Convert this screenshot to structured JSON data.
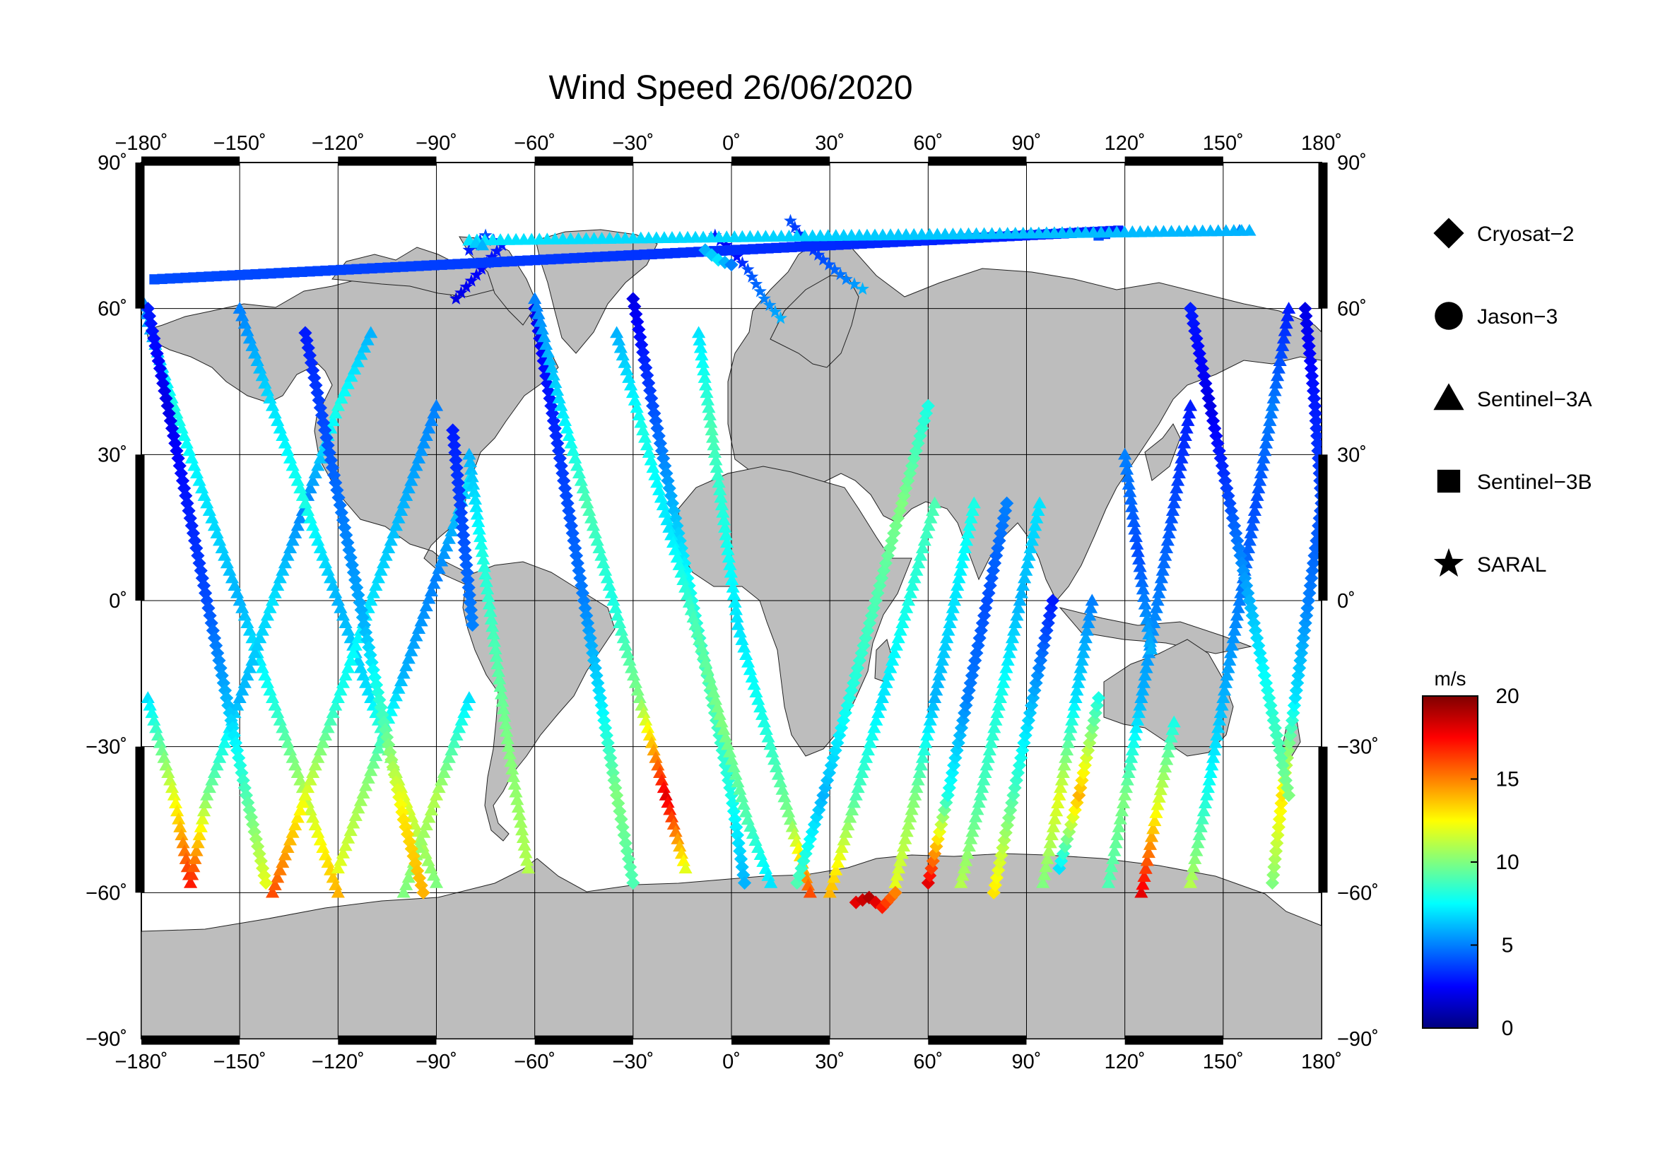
{
  "chart_data": {
    "type": "scatter",
    "title": "Wind Speed 26/06/2020",
    "projection": "equirectangular",
    "xlim": [
      -180,
      180
    ],
    "ylim": [
      -90,
      90
    ],
    "grid": true,
    "x_ticks": [
      -180,
      -150,
      -120,
      -90,
      -60,
      -30,
      0,
      30,
      60,
      90,
      120,
      150,
      180
    ],
    "y_ticks": [
      90,
      60,
      30,
      0,
      -30,
      -60,
      -90
    ],
    "x_tick_labels": [
      "−180˚",
      "−150˚",
      "−120˚",
      "−90˚",
      "−60˚",
      "−30˚",
      "0˚",
      "30˚",
      "60˚",
      "90˚",
      "120˚",
      "150˚",
      "180˚"
    ],
    "y_tick_labels": [
      "90˚",
      "60˚",
      "30˚",
      "0˚",
      "−30˚",
      "−60˚",
      "−90˚"
    ],
    "legend_placement": "right",
    "legend": [
      {
        "label": "Cryosat−2",
        "marker": "diamond"
      },
      {
        "label": "Jason−3",
        "marker": "circle"
      },
      {
        "label": "Sentinel−3A",
        "marker": "triangle"
      },
      {
        "label": "Sentinel−3B",
        "marker": "square"
      },
      {
        "label": "SARAL",
        "marker": "star"
      }
    ],
    "colorbar": {
      "unit": "m/s",
      "range": [
        0,
        20
      ],
      "ticks": [
        0,
        5,
        10,
        15,
        20
      ],
      "tick_labels": [
        "0",
        "5",
        "10",
        "15",
        "20"
      ],
      "colormap": "jet"
    },
    "tracks": [
      {
        "marker": "triangle",
        "points": [
          [
            -180,
            62,
            5
          ],
          [
            -170,
            40,
            8
          ],
          [
            -160,
            20,
            7
          ],
          [
            -150,
            0,
            6
          ],
          [
            -140,
            -20,
            8
          ],
          [
            -130,
            -40,
            11
          ],
          [
            -120,
            -60,
            14
          ]
        ]
      },
      {
        "marker": "triangle",
        "points": [
          [
            -178,
            -20,
            7
          ],
          [
            -170,
            -40,
            12
          ],
          [
            -165,
            -58,
            17
          ],
          [
            -160,
            -40,
            10
          ],
          [
            -150,
            -20,
            6
          ],
          [
            -140,
            0,
            7
          ],
          [
            -130,
            20,
            5
          ],
          [
            -120,
            40,
            8
          ],
          [
            -110,
            55,
            6
          ]
        ]
      },
      {
        "marker": "triangle",
        "points": [
          [
            -150,
            60,
            5
          ],
          [
            -140,
            40,
            7
          ],
          [
            -130,
            20,
            8
          ],
          [
            -120,
            0,
            6
          ],
          [
            -110,
            -20,
            7
          ],
          [
            -100,
            -40,
            12
          ],
          [
            -90,
            -58,
            10
          ]
        ]
      },
      {
        "marker": "triangle",
        "points": [
          [
            -140,
            -60,
            16
          ],
          [
            -130,
            -40,
            12
          ],
          [
            -120,
            -20,
            8
          ],
          [
            -110,
            0,
            7
          ],
          [
            -100,
            20,
            6
          ],
          [
            -90,
            40,
            5
          ]
        ]
      },
      {
        "marker": "triangle",
        "points": [
          [
            -120,
            -55,
            12
          ],
          [
            -110,
            -35,
            10
          ],
          [
            -100,
            -15,
            6
          ],
          [
            -90,
            5,
            5
          ],
          [
            -80,
            25,
            7
          ]
        ]
      },
      {
        "marker": "triangle",
        "points": [
          [
            -100,
            -60,
            10
          ],
          [
            -90,
            -40,
            11
          ],
          [
            -80,
            -20,
            7
          ]
        ]
      },
      {
        "marker": "diamond",
        "points": [
          [
            -178,
            60,
            3
          ],
          [
            -172,
            40,
            2
          ],
          [
            -166,
            20,
            3
          ],
          [
            -160,
            0,
            4
          ],
          [
            -154,
            -20,
            6
          ],
          [
            -148,
            -40,
            9
          ],
          [
            -142,
            -58,
            12
          ]
        ]
      },
      {
        "marker": "diamond",
        "points": [
          [
            -130,
            55,
            3
          ],
          [
            -124,
            35,
            4
          ],
          [
            -118,
            15,
            5
          ],
          [
            -112,
            -5,
            6
          ],
          [
            -106,
            -25,
            9
          ],
          [
            -100,
            -45,
            13
          ],
          [
            -94,
            -60,
            14
          ]
        ]
      },
      {
        "marker": "diamond",
        "points": [
          [
            -60,
            60,
            2
          ],
          [
            -55,
            40,
            3
          ],
          [
            -50,
            20,
            4
          ],
          [
            -45,
            0,
            5
          ],
          [
            -40,
            -20,
            7
          ],
          [
            -35,
            -40,
            10
          ],
          [
            -30,
            -58,
            9
          ]
        ]
      },
      {
        "marker": "diamond",
        "points": [
          [
            -30,
            62,
            2
          ],
          [
            -24,
            40,
            4
          ],
          [
            -18,
            20,
            6
          ],
          [
            -12,
            0,
            8
          ],
          [
            -6,
            -20,
            9
          ],
          [
            0,
            -40,
            8
          ],
          [
            4,
            -58,
            6
          ]
        ]
      },
      {
        "marker": "triangle",
        "points": [
          [
            -60,
            62,
            5
          ],
          [
            -52,
            40,
            7
          ],
          [
            -44,
            20,
            9
          ],
          [
            -36,
            0,
            8
          ],
          [
            -28,
            -20,
            10
          ],
          [
            -20,
            -40,
            18
          ],
          [
            -14,
            -55,
            12
          ]
        ]
      },
      {
        "marker": "triangle",
        "points": [
          [
            -35,
            55,
            6
          ],
          [
            -27,
            35,
            8
          ],
          [
            -19,
            15,
            7
          ],
          [
            -11,
            -5,
            9
          ],
          [
            -3,
            -25,
            10
          ],
          [
            5,
            -45,
            9
          ],
          [
            12,
            -58,
            7
          ]
        ]
      },
      {
        "marker": "triangle",
        "points": [
          [
            -10,
            55,
            7
          ],
          [
            -6,
            35,
            9
          ],
          [
            -2,
            15,
            8
          ],
          [
            2,
            -5,
            7
          ],
          [
            10,
            -25,
            8
          ],
          [
            18,
            -45,
            10
          ],
          [
            24,
            -60,
            16
          ]
        ]
      },
      {
        "marker": "diamond",
        "points": [
          [
            20,
            -58,
            9
          ],
          [
            28,
            -40,
            6
          ],
          [
            36,
            -20,
            8
          ],
          [
            44,
            0,
            9
          ],
          [
            52,
            20,
            10
          ],
          [
            60,
            40,
            8
          ]
        ]
      },
      {
        "marker": "triangle",
        "points": [
          [
            30,
            -60,
            14
          ],
          [
            38,
            -40,
            9
          ],
          [
            46,
            -20,
            7
          ],
          [
            54,
            0,
            8
          ],
          [
            62,
            20,
            9
          ]
        ]
      },
      {
        "marker": "triangle",
        "points": [
          [
            50,
            -58,
            12
          ],
          [
            56,
            -40,
            10
          ],
          [
            62,
            -20,
            6
          ],
          [
            68,
            0,
            7
          ],
          [
            74,
            20,
            8
          ]
        ]
      },
      {
        "marker": "diamond",
        "points": [
          [
            60,
            -58,
            18
          ],
          [
            66,
            -40,
            8
          ],
          [
            72,
            -20,
            5
          ],
          [
            78,
            0,
            4
          ],
          [
            84,
            20,
            5
          ]
        ]
      },
      {
        "marker": "triangle",
        "points": [
          [
            70,
            -58,
            11
          ],
          [
            76,
            -40,
            9
          ],
          [
            82,
            -20,
            8
          ],
          [
            88,
            0,
            6
          ],
          [
            94,
            20,
            7
          ]
        ]
      },
      {
        "marker": "diamond",
        "points": [
          [
            80,
            -60,
            13
          ],
          [
            86,
            -40,
            9
          ],
          [
            92,
            -20,
            6
          ],
          [
            98,
            0,
            3
          ]
        ]
      },
      {
        "marker": "triangle",
        "points": [
          [
            95,
            -58,
            10
          ],
          [
            100,
            -40,
            12
          ],
          [
            105,
            -20,
            7
          ],
          [
            110,
            0,
            5
          ]
        ]
      },
      {
        "marker": "diamond",
        "points": [
          [
            100,
            -55,
            7
          ],
          [
            106,
            -40,
            14
          ],
          [
            112,
            -20,
            8
          ]
        ]
      },
      {
        "marker": "triangle",
        "points": [
          [
            115,
            -58,
            9
          ],
          [
            120,
            -40,
            10
          ],
          [
            125,
            -20,
            6
          ],
          [
            130,
            0,
            5
          ],
          [
            135,
            20,
            4
          ],
          [
            140,
            40,
            3
          ]
        ]
      },
      {
        "marker": "triangle",
        "points": [
          [
            125,
            -60,
            18
          ],
          [
            130,
            -42,
            12
          ],
          [
            135,
            -25,
            8
          ]
        ]
      },
      {
        "marker": "triangle",
        "points": [
          [
            140,
            -58,
            11
          ],
          [
            145,
            -40,
            8
          ],
          [
            150,
            -20,
            6
          ],
          [
            155,
            0,
            5
          ],
          [
            160,
            20,
            4
          ],
          [
            165,
            40,
            5
          ],
          [
            170,
            60,
            3
          ]
        ]
      },
      {
        "marker": "diamond",
        "points": [
          [
            165,
            -58,
            10
          ],
          [
            168,
            -40,
            13
          ],
          [
            172,
            -20,
            7
          ],
          [
            176,
            0,
            5
          ],
          [
            180,
            20,
            4
          ]
        ]
      },
      {
        "marker": "diamond",
        "points": [
          [
            140,
            60,
            3
          ],
          [
            146,
            40,
            2
          ],
          [
            152,
            20,
            4
          ],
          [
            158,
            0,
            6
          ],
          [
            164,
            -20,
            8
          ],
          [
            170,
            -40,
            10
          ]
        ]
      },
      {
        "marker": "diamond",
        "points": [
          [
            175,
            60,
            2
          ],
          [
            178,
            40,
            3
          ],
          [
            180,
            20,
            4
          ]
        ]
      },
      {
        "marker": "triangle",
        "points": [
          [
            120,
            30,
            5
          ],
          [
            124,
            10,
            4
          ],
          [
            128,
            -10,
            6
          ]
        ]
      },
      {
        "marker": "triangle",
        "points": [
          [
            -80,
            30,
            6
          ],
          [
            -76,
            10,
            8
          ],
          [
            -72,
            -10,
            9
          ],
          [
            -68,
            -30,
            10
          ],
          [
            -62,
            -55,
            11
          ]
        ]
      },
      {
        "marker": "diamond",
        "points": [
          [
            -85,
            35,
            3
          ],
          [
            -82,
            15,
            4
          ],
          [
            -79,
            -5,
            5
          ]
        ]
      },
      {
        "marker": "star",
        "points": [
          [
            -80,
            72,
            3
          ],
          [
            -75,
            75,
            4
          ],
          [
            -70,
            73,
            3
          ],
          [
            -84,
            62,
            2
          ]
        ]
      },
      {
        "marker": "star",
        "points": [
          [
            -5,
            75,
            3
          ],
          [
            0,
            72,
            2
          ],
          [
            5,
            68,
            4
          ],
          [
            10,
            62,
            5
          ],
          [
            15,
            58,
            6
          ]
        ]
      },
      {
        "marker": "star",
        "points": [
          [
            18,
            78,
            4
          ],
          [
            22,
            74,
            3
          ],
          [
            28,
            70,
            4
          ],
          [
            35,
            66,
            5
          ],
          [
            40,
            64,
            6
          ]
        ]
      },
      {
        "marker": "square",
        "points": [
          [
            112,
            75,
            4
          ],
          [
            118,
            76,
            3
          ],
          [
            -176,
            66,
            4
          ]
        ]
      },
      {
        "marker": "triangle",
        "points": [
          [
            155,
            76,
            5
          ],
          [
            158,
            76,
            6
          ],
          [
            -80,
            74,
            7
          ],
          [
            -76,
            73,
            6
          ]
        ]
      },
      {
        "marker": "diamond",
        "points": [
          [
            -8,
            72,
            6
          ],
          [
            -4,
            70,
            7
          ],
          [
            0,
            69,
            5
          ]
        ]
      },
      {
        "marker": "diamond",
        "points": [
          [
            38,
            -62,
            18
          ],
          [
            42,
            -61,
            19
          ],
          [
            46,
            -63,
            17
          ],
          [
            50,
            -60,
            15
          ]
        ]
      }
    ]
  }
}
